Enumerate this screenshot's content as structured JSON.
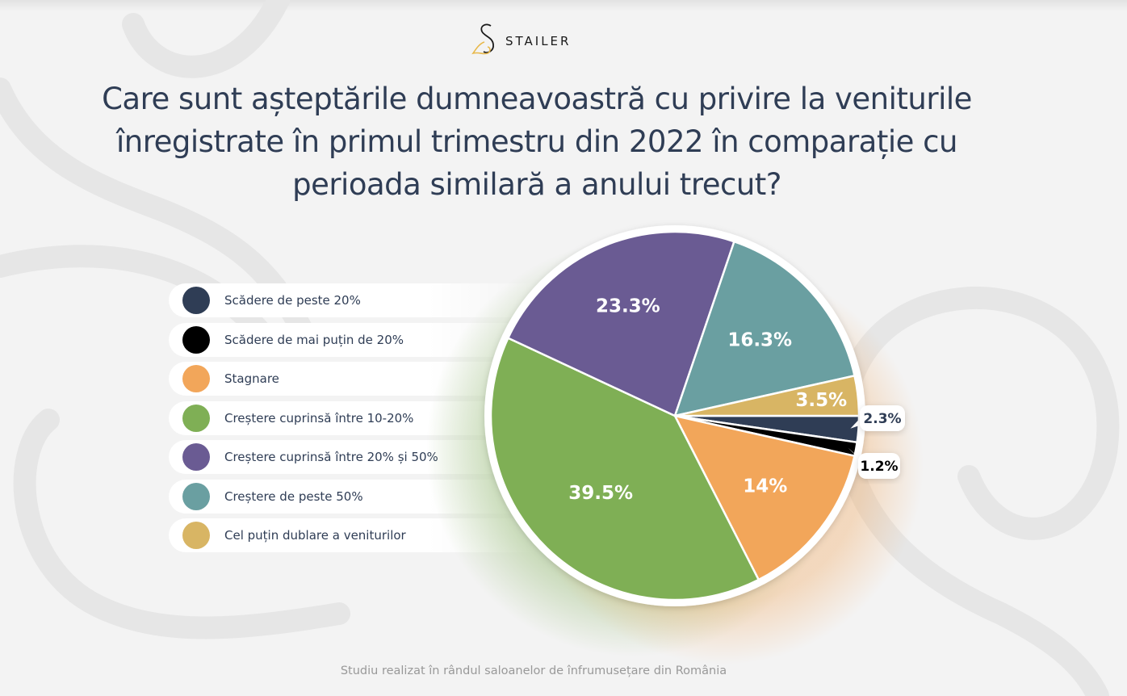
{
  "brand": {
    "name": "STAILER",
    "logo_icon": "stailer-s-logo-icon"
  },
  "header": {
    "title": "Care sunt așteptările dumneavoastră cu privire la veniturile înregistrate în primul trimestru din 2022 în comparație cu perioada similară a anului trecut?"
  },
  "footer": {
    "text": "Studiu realizat în rândul saloanelor de înfrumusețare din România"
  },
  "legend": {
    "items": [
      {
        "label": "Scădere de peste 20%",
        "color": "#2f3d55"
      },
      {
        "label": "Scădere de mai puțin de 20%",
        "color": "#000000"
      },
      {
        "label": "Stagnare",
        "color": "#f2a65a"
      },
      {
        "label": "Creștere cuprinsă între 10-20%",
        "color": "#7faf55"
      },
      {
        "label": "Creștere cuprinsă între 20% și 50%",
        "color": "#6a5b93"
      },
      {
        "label": "Creștere de peste 50%",
        "color": "#6a9fa1"
      },
      {
        "label": "Cel puțin dublare a veniturilor",
        "color": "#d8b564"
      }
    ]
  },
  "chart_data": {
    "type": "pie",
    "title": "Care sunt așteptările dumneavoastră cu privire la veniturile înregistrate în primul trimestru din 2022 în comparație cu perioada similară a anului trecut?",
    "legend_position": "left",
    "slices": [
      {
        "name": "Scădere de peste 20%",
        "value": 2.3,
        "label": "2.3%",
        "color": "#2f3d55",
        "label_style": "callout"
      },
      {
        "name": "Scădere de mai puțin de 20%",
        "value": 1.2,
        "label": "1.2%",
        "color": "#000000",
        "label_style": "callout"
      },
      {
        "name": "Stagnare",
        "value": 14,
        "label": "14%",
        "color": "#f2a65a",
        "label_style": "inside"
      },
      {
        "name": "Creștere cuprinsă între 10-20%",
        "value": 39.5,
        "label": "39.5%",
        "color": "#7faf55",
        "label_style": "inside"
      },
      {
        "name": "Creștere cuprinsă între 20% și 50%",
        "value": 23.3,
        "label": "23.3%",
        "color": "#6a5b93",
        "label_style": "inside"
      },
      {
        "name": "Creștere de peste 50%",
        "value": 16.3,
        "label": "16.3%",
        "color": "#6a9fa1",
        "label_style": "inside"
      },
      {
        "name": "Cel puțin dublare a veniturilor",
        "value": 3.5,
        "label": "3.5%",
        "color": "#d8b564",
        "label_style": "inside"
      }
    ]
  }
}
